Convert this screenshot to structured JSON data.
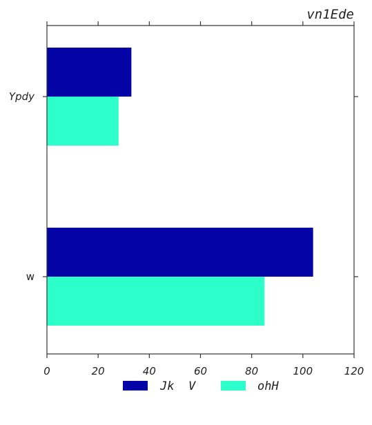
{
  "chart_data": {
    "type": "bar",
    "orientation": "horizontal",
    "title": "vn1Ede",
    "categories": [
      "Ypdy",
      "w"
    ],
    "series": [
      {
        "name": "Jk  V",
        "color": "#0303a6",
        "values": [
          33,
          104
        ]
      },
      {
        "name": "ohH",
        "color": "#2dffcb",
        "values": [
          28,
          85
        ]
      }
    ],
    "xlim": [
      0,
      120
    ],
    "xticks": [
      "0",
      "20",
      "40",
      "60",
      "80",
      "100",
      "120"
    ],
    "xlabel": "",
    "ylabel": "",
    "grid": false,
    "legend_position": "bottom-center"
  }
}
